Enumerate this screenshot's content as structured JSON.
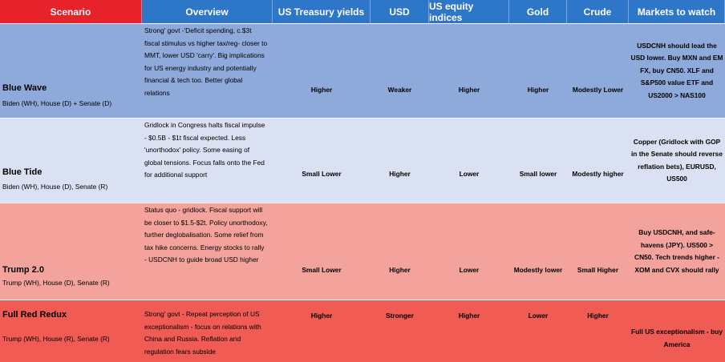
{
  "headers": [
    "Scenario",
    "Overview",
    "US Treasury yields",
    "USD",
    "US equity indices",
    "Gold",
    "Crude",
    "Markets to watch"
  ],
  "rows": [
    {
      "name": "Blue Wave",
      "sub": "Biden (WH), House (D) + Senate (D)",
      "overview": "Strong' govt -'Deficit spending, c.$3t fiscal stimulus vs higher tax/reg- closer to MMT, lower USD 'carry'. Big implications for US energy industry and potentially financial & tech too. Better global relations",
      "treasury": "Higher",
      "usd": "Weaker",
      "equity": "Higher",
      "gold": "Higher",
      "crude": "Modestly Lower",
      "markets": "USDCNH should lead the USD lower. Buy MXN and EM FX, buy CN50. XLF and S&P500 value ETF and US2000 > NAS100"
    },
    {
      "name": "Blue Tide",
      "sub": "Biden (WH), House (D), Senate (R)",
      "overview": "Gridlock in Congress halts fiscal impulse - $0.5B - $1t fiscal expected. Less 'unorthodox' policy. Some easing of global tensions. Focus falls onto the Fed for additional support",
      "treasury": "Small Lower",
      "usd": "Higher",
      "equity": "Lower",
      "gold": "Small lower",
      "crude": "Modestly higher",
      "markets": "Copper (Gridlock with GOP in the Senate should reverse reflation bets), EURUSD, US500"
    },
    {
      "name": "Trump 2.0",
      "sub": "Trump (WH), House (D), Senate (R)",
      "overview": "Status quo - gridlock. Fiscal support will be closer to $1.5-$2t. Policy unorthodoxy, further deglobalisation. Some relief from tax hike concerns. Energy stocks to rally - USDCNH to guide broad USD higher",
      "treasury": "Small Lower",
      "usd": "Higher",
      "equity": "Lower",
      "gold": "Modestly lower",
      "crude": "Small Higher",
      "markets": "Buy USDCNH, and safe-havens (JPY). US500 > CN50. Tech trends higher - XOM and CVX should rally"
    },
    {
      "name": "Full Red Redux",
      "sub": "Trump (WH), House (R), Senate (R)",
      "overview": "Strong' govt - Repeat perception of US exceptionalism - focus on relations with China and Russia. Reflation and regulation fears subside",
      "treasury": "Higher",
      "usd": "Stronger",
      "equity": "Higher",
      "gold": "Lower",
      "crude": "Higher",
      "markets": "Full US exceptionalism - buy America"
    }
  ]
}
